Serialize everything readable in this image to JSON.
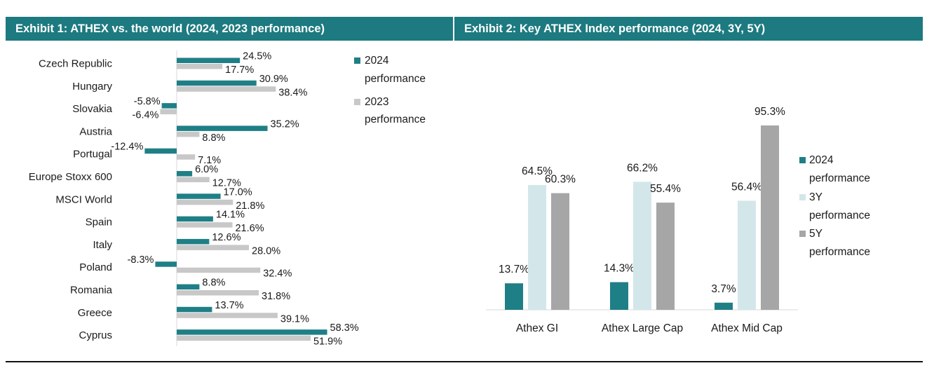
{
  "headers": {
    "exhibit1": "Exhibit 1: ATHEX vs. the world (2024, 2023 performance)",
    "exhibit2": "Exhibit 2: Key ATHEX Index performance (2024, 3Y, 5Y)"
  },
  "colors": {
    "teal": "#1f7f86",
    "light_gray": "#c8c8c8",
    "light_blue": "#d3e7ea",
    "mid_gray": "#a6a6a6",
    "header_bg": "#1c7a80"
  },
  "chart_data": [
    {
      "type": "bar",
      "orientation": "horizontal",
      "categories": [
        "Czech Republic",
        "Hungary",
        "Slovakia",
        "Austria",
        "Portugal",
        "Europe Stoxx 600",
        "MSCI World",
        "Spain",
        "Italy",
        "Poland",
        "Romania",
        "Greece",
        "Cyprus"
      ],
      "series": [
        {
          "name": "2024 performance",
          "color": "#1f7f86",
          "values": [
            24.5,
            30.9,
            -5.8,
            35.2,
            -12.4,
            6.0,
            17.0,
            14.1,
            12.6,
            -8.3,
            8.8,
            13.7,
            58.3
          ],
          "labels": [
            "24.5%",
            "30.9%",
            "-5.8%",
            "35.2%",
            "-12.4%",
            "6.0%",
            "17.0%",
            "14.1%",
            "12.6%",
            "-8.3%",
            "8.8%",
            "13.7%",
            "58.3%"
          ]
        },
        {
          "name": "2023 performance",
          "color": "#c8c8c8",
          "values": [
            17.7,
            38.4,
            -6.4,
            8.8,
            7.1,
            12.7,
            21.8,
            21.6,
            28.0,
            32.4,
            31.8,
            39.1,
            51.9
          ],
          "labels": [
            "17.7%",
            "38.4%",
            "-6.4%",
            "8.8%",
            "7.1%",
            "12.7%",
            "21.8%",
            "21.6%",
            "28.0%",
            "32.4%",
            "31.8%",
            "39.1%",
            "51.9%"
          ]
        }
      ],
      "legend": [
        "2024",
        "performance",
        "2023",
        "performance"
      ],
      "legend_position": "right",
      "grid": false
    },
    {
      "type": "bar",
      "orientation": "vertical",
      "categories": [
        "Athex GI",
        "Athex Large Cap",
        "Athex Mid Cap"
      ],
      "series": [
        {
          "name": "2024 performance",
          "color": "#1f7f86",
          "values": [
            13.7,
            14.3,
            3.7
          ],
          "labels": [
            "13.7%",
            "14.3%",
            "3.7%"
          ]
        },
        {
          "name": "3Y performance",
          "color": "#d3e7ea",
          "values": [
            64.5,
            66.2,
            56.4
          ],
          "labels": [
            "64.5%",
            "66.2%",
            "56.4%"
          ]
        },
        {
          "name": "5Y performance",
          "color": "#a6a6a6",
          "values": [
            60.3,
            55.4,
            95.3
          ],
          "labels": [
            "60.3%",
            "55.4%",
            "95.3%"
          ]
        }
      ],
      "legend": [
        "2024",
        "performance",
        "3Y",
        "performance",
        "5Y",
        "performance"
      ],
      "legend_position": "right",
      "grid": false
    }
  ]
}
